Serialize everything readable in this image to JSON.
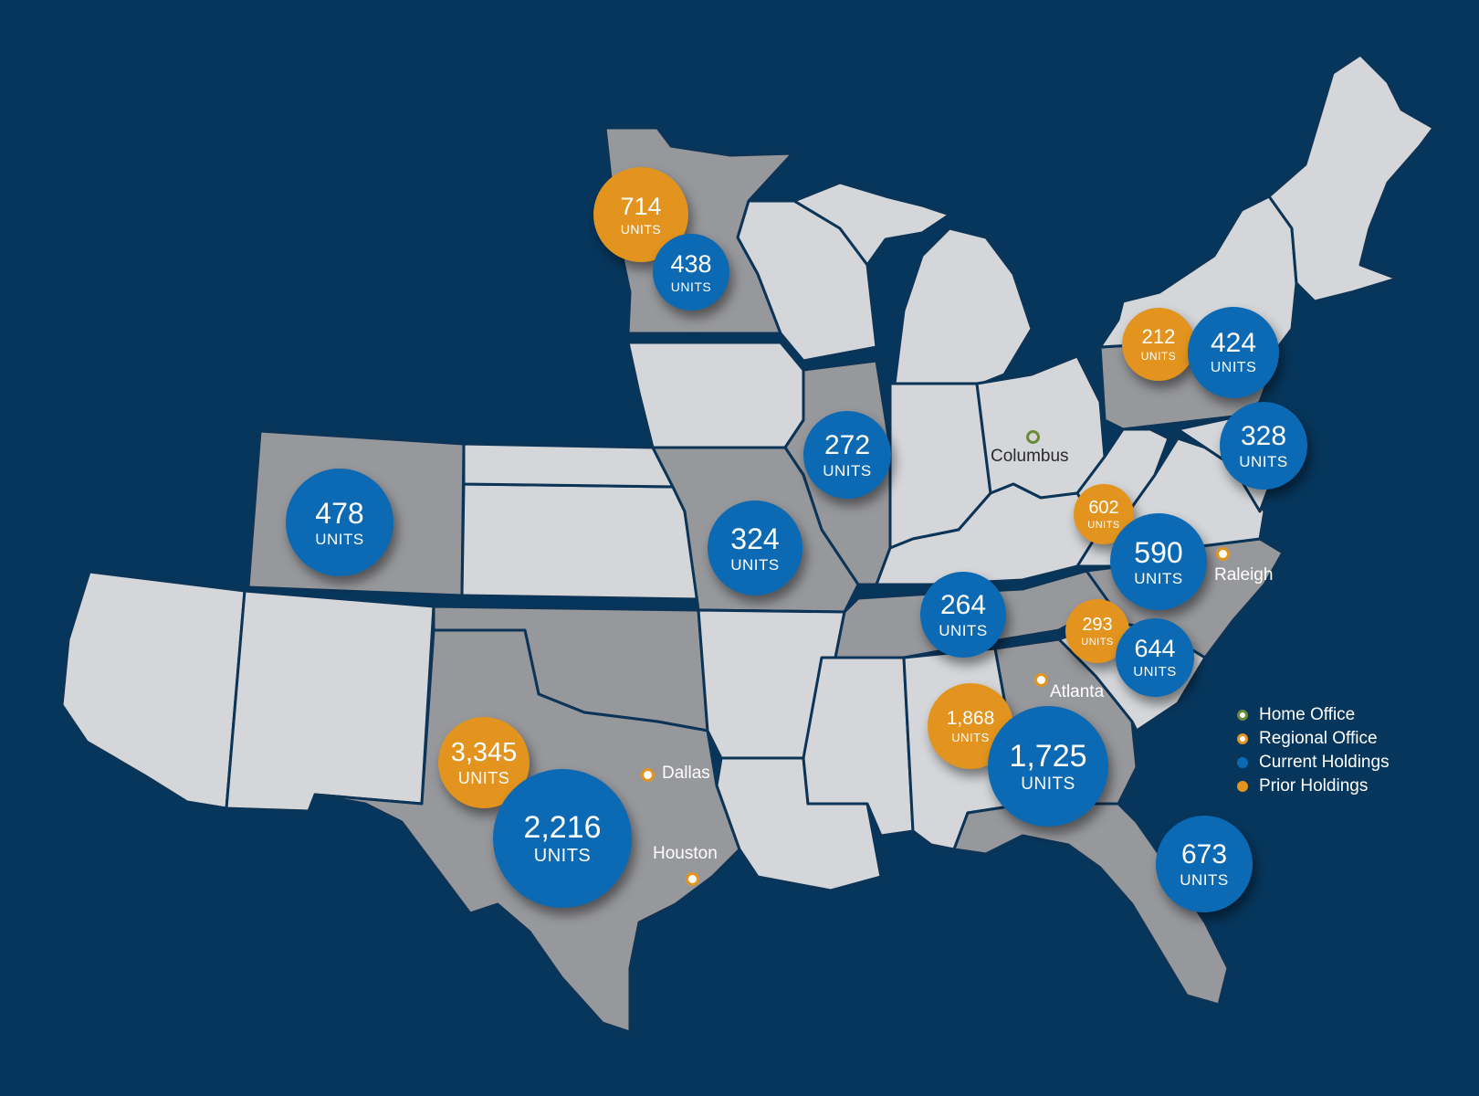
{
  "map": {
    "colors": {
      "background": "#07365c",
      "state_light": "#d4d6d9",
      "state_highlight": "#97989c",
      "current_holdings": "#0b6ab3",
      "prior_holdings": "#e2941e",
      "home_office": "#6a8a3a"
    },
    "highlighted_states": [
      "Minnesota",
      "Colorado",
      "Illinois",
      "Missouri",
      "Texas",
      "Oklahoma",
      "Tennessee",
      "Pennsylvania",
      "North Carolina",
      "Georgia",
      "Florida"
    ],
    "holdings": [
      {
        "value": "714",
        "unit": "UNITS",
        "type": "prior",
        "region": "Minnesota"
      },
      {
        "value": "438",
        "unit": "UNITS",
        "type": "current",
        "region": "Minnesota"
      },
      {
        "value": "478",
        "unit": "UNITS",
        "type": "current",
        "region": "Colorado"
      },
      {
        "value": "272",
        "unit": "UNITS",
        "type": "current",
        "region": "Illinois"
      },
      {
        "value": "324",
        "unit": "UNITS",
        "type": "current",
        "region": "Missouri"
      },
      {
        "value": "212",
        "unit": "UNITS",
        "type": "prior",
        "region": "Pennsylvania"
      },
      {
        "value": "424",
        "unit": "UNITS",
        "type": "current",
        "region": "Pennsylvania"
      },
      {
        "value": "328",
        "unit": "UNITS",
        "type": "current",
        "region": "Mid-Atlantic"
      },
      {
        "value": "602",
        "unit": "UNITS",
        "type": "prior",
        "region": "West Virginia"
      },
      {
        "value": "590",
        "unit": "UNITS",
        "type": "current",
        "region": "North Carolina"
      },
      {
        "value": "264",
        "unit": "UNITS",
        "type": "current",
        "region": "Tennessee"
      },
      {
        "value": "293",
        "unit": "UNITS",
        "type": "prior",
        "region": "Carolinas"
      },
      {
        "value": "644",
        "unit": "UNITS",
        "type": "current",
        "region": "South Carolina"
      },
      {
        "value": "1,868",
        "unit": "UNITS",
        "type": "prior",
        "region": "Alabama"
      },
      {
        "value": "1,725",
        "unit": "UNITS",
        "type": "current",
        "region": "Georgia"
      },
      {
        "value": "3,345",
        "unit": "UNITS",
        "type": "prior",
        "region": "Texas"
      },
      {
        "value": "2,216",
        "unit": "UNITS",
        "type": "current",
        "region": "Texas"
      },
      {
        "value": "673",
        "unit": "UNITS",
        "type": "current",
        "region": "Florida"
      }
    ],
    "cities": [
      {
        "name": "Columbus",
        "type": "home"
      },
      {
        "name": "Raleigh",
        "type": "regional"
      },
      {
        "name": "Atlanta",
        "type": "regional"
      },
      {
        "name": "Dallas",
        "type": "regional"
      },
      {
        "name": "Houston",
        "type": "regional"
      }
    ]
  },
  "legend": {
    "home_office": "Home Office",
    "regional_office": "Regional Office",
    "current_holdings": "Current Holdings",
    "prior_holdings": "Prior Holdings"
  }
}
